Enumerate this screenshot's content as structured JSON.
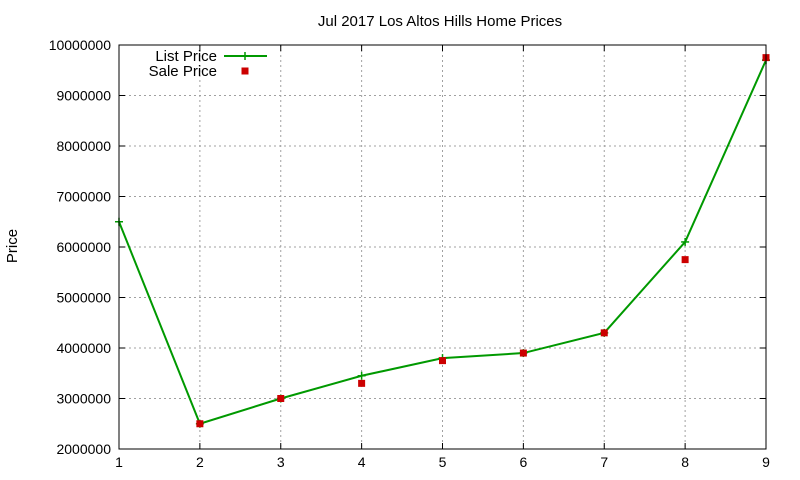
{
  "chart_data": {
    "type": "line",
    "title": "Jul 2017 Los Altos Hills Home Prices",
    "xlabel": "",
    "ylabel": "Price",
    "x": [
      1,
      2,
      3,
      4,
      5,
      6,
      7,
      8,
      9
    ],
    "xlim": [
      1,
      9
    ],
    "ylim": [
      2000000,
      10000000
    ],
    "xticks": [
      "1",
      "2",
      "3",
      "4",
      "5",
      "6",
      "7",
      "8",
      "9"
    ],
    "yticks": [
      "2000000",
      "3000000",
      "4000000",
      "5000000",
      "6000000",
      "7000000",
      "8000000",
      "9000000",
      "10000000"
    ],
    "grid": true,
    "legend_position": "top-left",
    "series": [
      {
        "name": "List Price",
        "style": "linespoints",
        "color": "#009900",
        "marker": "plus",
        "values": [
          6500000,
          2500000,
          3000000,
          3450000,
          3800000,
          3900000,
          4300000,
          6100000,
          9700000
        ]
      },
      {
        "name": "Sale Price",
        "style": "points",
        "color": "#cc0000",
        "marker": "square",
        "values": [
          null,
          2500000,
          3000000,
          3300000,
          3750000,
          3900000,
          4300000,
          5750000,
          9750000
        ]
      }
    ]
  }
}
